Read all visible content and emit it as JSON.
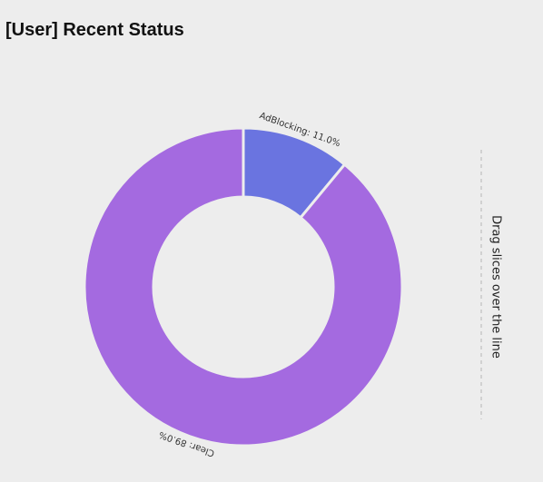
{
  "chart_data": {
    "type": "donut",
    "title": "[User] Recent Status",
    "values": [
      11.0,
      89.0
    ],
    "value_labels": [
      "AdBlocking: 11.0%",
      "Clear: 89.0%"
    ],
    "colors": [
      "#6a74e0",
      "#a46ae0"
    ],
    "hint": "Drag slices over the line"
  }
}
